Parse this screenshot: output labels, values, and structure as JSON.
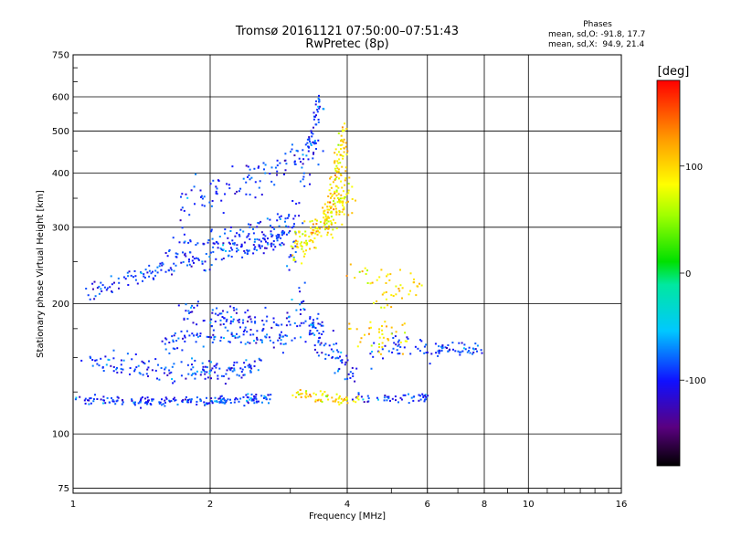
{
  "title": "Tromsø 20161121 07:50:00–07:51:43",
  "subtitle": "RwPretec (8p)",
  "stats": {
    "heading": "Phases",
    "line_o": "mean, sd,O: -91.8, 17.7",
    "line_x": "mean, sd,X:  94.9, 21.4"
  },
  "colorbar": {
    "label": "[deg]",
    "range": [
      -180,
      180
    ],
    "tick_labels": [
      "100",
      "0",
      "-100"
    ],
    "tick_values": [
      100,
      0,
      -100
    ]
  },
  "chart_data": {
    "type": "scatter",
    "xlabel": "Frequency [MHz]",
    "ylabel": "Stationary phase Virtual Height [km]",
    "x_scale": "log",
    "y_scale": "log",
    "xlim": [
      1,
      16
    ],
    "ylim": [
      73,
      750
    ],
    "x_ticks": [
      1,
      2,
      4,
      6,
      8,
      10,
      16
    ],
    "x_tick_labels": [
      "1",
      "2",
      "4",
      "6",
      "8",
      "10",
      "16"
    ],
    "y_ticks": [
      75,
      100,
      200,
      300,
      400,
      500,
      600,
      750
    ],
    "y_tick_labels": [
      "75",
      "100",
      "200",
      "300",
      "400",
      "500",
      "600",
      "750"
    ],
    "grid": true,
    "series": [
      {
        "name": "O",
        "color_value_mean": -91.8,
        "color_value_sd": 17.7,
        "traces": [
          {
            "x": [
              1.02,
              1.3,
              1.6,
              2.0,
              2.4,
              2.7
            ],
            "y": [
              120,
              119,
              119,
              119,
              120,
              121
            ],
            "count": 190,
            "spread": 0.012
          },
          {
            "x": [
              1.05,
              1.4,
              1.8,
              2.2,
              2.6
            ],
            "y": [
              148,
              142,
              140,
              141,
              143
            ],
            "count": 160,
            "spread": 0.03
          },
          {
            "x": [
              1.6,
              1.9,
              2.2,
              2.6,
              3.0
            ],
            "y": [
              160,
              168,
              170,
              168,
              166
            ],
            "count": 110,
            "spread": 0.03
          },
          {
            "x": [
              1.7,
              2.0,
              2.3,
              2.8,
              3.3,
              3.6
            ],
            "y": [
              195,
              190,
              185,
              180,
              178,
              180
            ],
            "count": 110,
            "spread": 0.03
          },
          {
            "x": [
              1.05,
              1.3,
              1.6,
              2.0,
              2.5,
              2.9
            ],
            "y": [
              210,
              225,
              240,
              255,
              270,
              285
            ],
            "count": 170,
            "spread": 0.025
          },
          {
            "x": [
              1.6,
              2.0,
              2.4,
              2.8,
              3.1
            ],
            "y": [
              260,
              275,
              290,
              300,
              310
            ],
            "count": 120,
            "spread": 0.04
          },
          {
            "x": [
              1.7,
              2.0,
              2.4,
              2.8,
              3.2,
              3.5
            ],
            "y": [
              335,
              360,
              385,
              410,
              440,
              470
            ],
            "count": 120,
            "spread": 0.05
          },
          {
            "x": [
              3.1,
              3.3,
              3.5,
              3.8,
              4.2
            ],
            "y": [
              210,
              180,
              160,
              150,
              135
            ],
            "count": 80,
            "spread": 0.04
          },
          {
            "x": [
              4.0,
              4.5,
              5.0,
              5.5,
              6.0
            ],
            "y": [
              122,
              121,
              121,
              122,
              122
            ],
            "count": 50,
            "spread": 0.012
          },
          {
            "x": [
              4.5,
              5.0,
              5.5,
              6.0
            ],
            "y": [
              150,
              160,
              165,
              155
            ],
            "count": 40,
            "spread": 0.04
          },
          {
            "x": [
              6.2,
              6.7,
              7.2,
              7.8
            ],
            "y": [
              157,
              158,
              156,
              155
            ],
            "count": 50,
            "spread": 0.02
          },
          {
            "x": [
              3.0,
              3.2,
              3.4,
              3.5
            ],
            "y": [
              230,
              380,
              520,
              620
            ],
            "count": 60,
            "spread": 0.05
          }
        ]
      },
      {
        "name": "X",
        "color_value_mean": 94.9,
        "color_value_sd": 21.4,
        "traces": [
          {
            "x": [
              3.0,
              3.3,
              3.6,
              3.9,
              4.1
            ],
            "y": [
              265,
              285,
              310,
              340,
              370
            ],
            "count": 150,
            "spread": 0.05
          },
          {
            "x": [
              3.6,
              3.7,
              3.8,
              3.9,
              4.0
            ],
            "y": [
              300,
              350,
              400,
              450,
              490
            ],
            "count": 110,
            "spread": 0.06
          },
          {
            "x": [
              3.0,
              3.4,
              3.8,
              4.2
            ],
            "y": [
              125,
              122,
              121,
              120
            ],
            "count": 60,
            "spread": 0.015
          },
          {
            "x": [
              4.0,
              4.5,
              5.0,
              5.5
            ],
            "y": [
              175,
              170,
              165,
              168
            ],
            "count": 40,
            "spread": 0.04
          },
          {
            "x": [
              4.0,
              4.5,
              5.0,
              5.7
            ],
            "y": [
              235,
              232,
              230,
              228
            ],
            "count": 25,
            "spread": 0.03
          },
          {
            "x": [
              4.6,
              5.0,
              5.5,
              5.8
            ],
            "y": [
              200,
              210,
              215,
              220
            ],
            "count": 25,
            "spread": 0.03
          }
        ]
      }
    ]
  }
}
